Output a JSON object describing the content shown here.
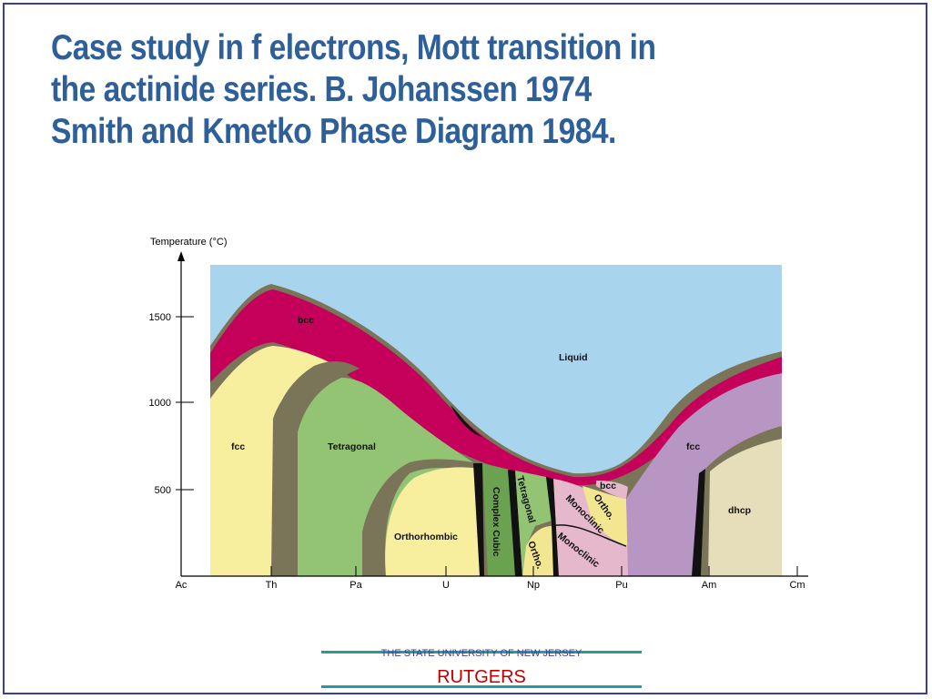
{
  "title": {
    "line1": "Case study in f electrons, Mott transition  in",
    "line2": "the  actinide series. B. Johanssen 1974",
    "line3": "Smith and Kmetko Phase Diagram 1984."
  },
  "diagram": {
    "y_axis_title": "Temperature (°C)",
    "y_ticks": [
      "1500",
      "1000",
      "500"
    ],
    "x_ticks": [
      "Ac",
      "Th",
      "Pa",
      "U",
      "Np",
      "Pu",
      "Am",
      "Cm"
    ],
    "phases": {
      "liquid": "Liquid",
      "bcc_top": "bcc",
      "bcc_pu": "bcc",
      "fcc_left": "fcc",
      "fcc_right": "fcc",
      "tetragonal_left": "Tetragonal",
      "orthorhombic": "Orthorhombic",
      "complex_cubic": "Complex Cubic",
      "tetragonal_np": "Tetragonal",
      "ortho_np": "Ortho.",
      "monoclinic_upper": "Monoclinic",
      "monoclinic_lower": "Monoclinic",
      "ortho_pu": "Ortho.",
      "dhcp": "dhcp"
    },
    "colors": {
      "liquid": "#a8d4ee",
      "bcc": "#c4005a",
      "mixed": "#7a7458",
      "fcc_yellow": "#f7ee9e",
      "tetragonal_green": "#92c474",
      "complex_cubic": "#6aa24f",
      "monoclinic": "#e6b8cc",
      "fcc_purple": "#b896c4",
      "dhcp": "#e6deba",
      "ortho_yellow": "#f2e690"
    }
  },
  "footer": {
    "university": "THE STATE UNIVERSITY OF NEW JERSEY",
    "name": "RUTGERS"
  }
}
